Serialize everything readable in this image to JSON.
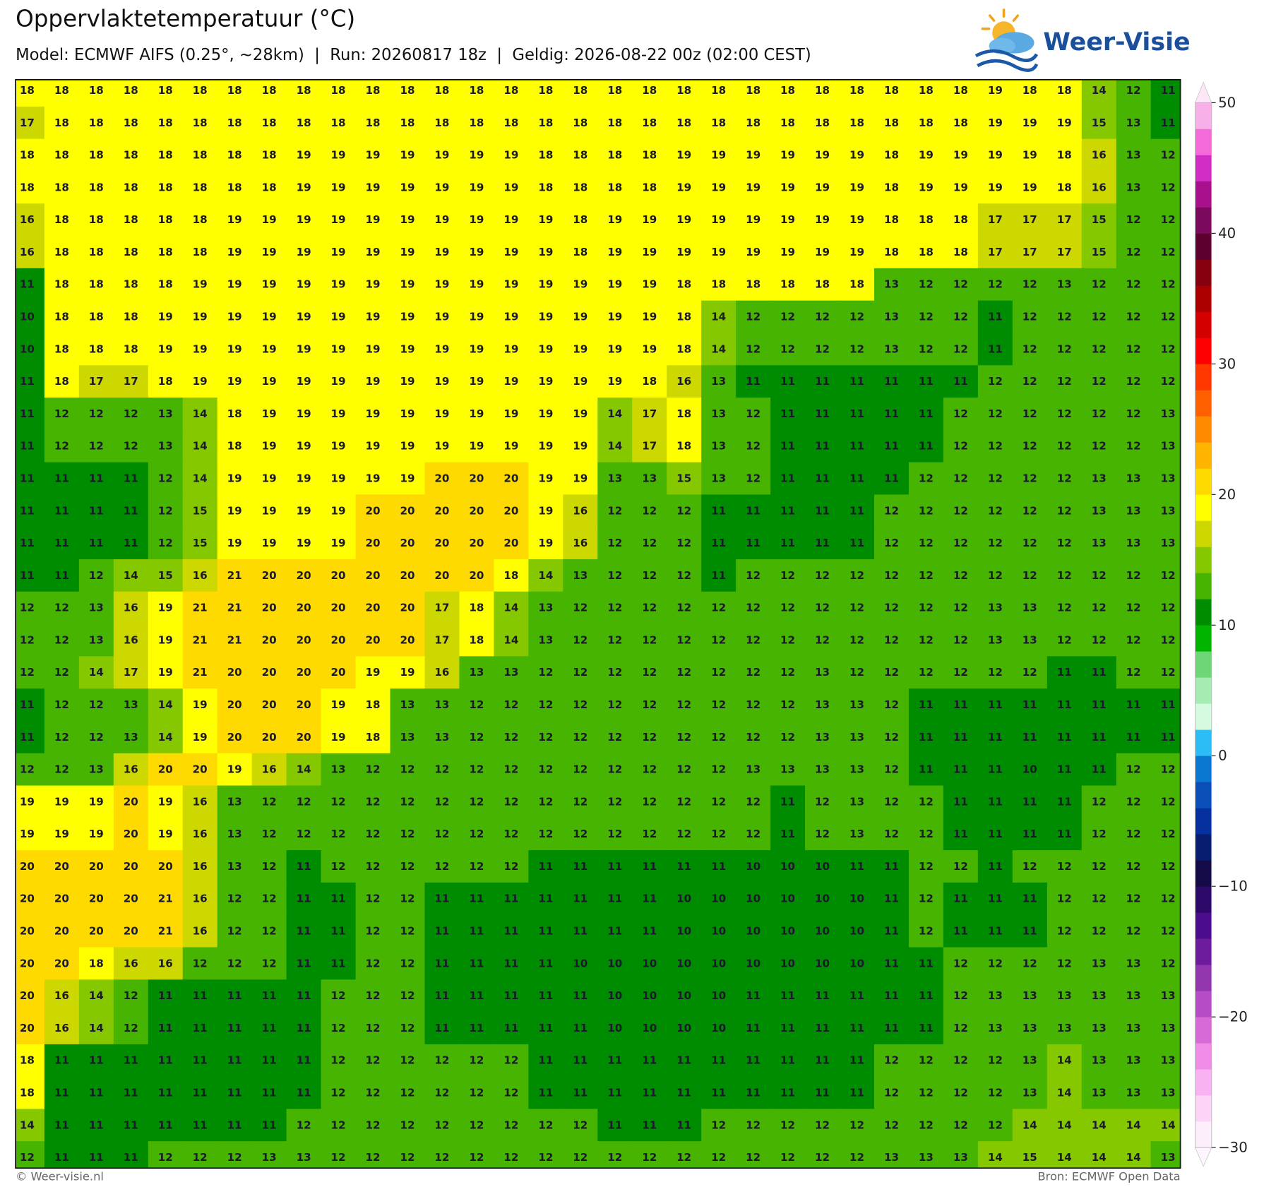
{
  "header": {
    "title": "Oppervlaktetemperatuur (°C)",
    "subtitle": "Model: ECMWF AIFS (0.25°, ~28km)  |  Run: 20260817 18z  |  Geldig: 2026-08-22 00z (02:00 CEST)",
    "logo_text": "Weer-Visie"
  },
  "map": {
    "values": [
      [
        18,
        18,
        18,
        18,
        18,
        18,
        18,
        18,
        18,
        18,
        18,
        18,
        18,
        18,
        18,
        18,
        18,
        18,
        18,
        18,
        18,
        18,
        18,
        18,
        18,
        18,
        18,
        18,
        19,
        18,
        18,
        14,
        12,
        11
      ],
      [
        17,
        18,
        18,
        18,
        18,
        18,
        18,
        18,
        18,
        18,
        18,
        18,
        18,
        18,
        18,
        18,
        18,
        18,
        18,
        18,
        18,
        18,
        18,
        18,
        18,
        18,
        18,
        18,
        19,
        19,
        19,
        15,
        13,
        11
      ],
      [
        18,
        18,
        18,
        18,
        18,
        18,
        18,
        18,
        19,
        19,
        19,
        19,
        19,
        19,
        19,
        18,
        18,
        18,
        18,
        19,
        19,
        19,
        19,
        19,
        19,
        18,
        19,
        19,
        19,
        19,
        18,
        16,
        13,
        12
      ],
      [
        18,
        18,
        18,
        18,
        18,
        18,
        18,
        18,
        19,
        19,
        19,
        19,
        19,
        19,
        19,
        18,
        18,
        18,
        18,
        19,
        19,
        19,
        19,
        19,
        19,
        18,
        19,
        19,
        19,
        19,
        18,
        16,
        13,
        12
      ],
      [
        16,
        18,
        18,
        18,
        18,
        18,
        19,
        19,
        19,
        19,
        19,
        19,
        19,
        19,
        19,
        19,
        18,
        19,
        19,
        19,
        19,
        19,
        19,
        19,
        19,
        18,
        18,
        18,
        17,
        17,
        17,
        15,
        12,
        12
      ],
      [
        16,
        18,
        18,
        18,
        18,
        18,
        19,
        19,
        19,
        19,
        19,
        19,
        19,
        19,
        19,
        19,
        18,
        19,
        19,
        19,
        19,
        19,
        19,
        19,
        19,
        18,
        18,
        18,
        17,
        17,
        17,
        15,
        12,
        12
      ],
      [
        11,
        18,
        18,
        18,
        18,
        19,
        19,
        19,
        19,
        19,
        19,
        19,
        19,
        19,
        19,
        19,
        19,
        19,
        19,
        18,
        18,
        18,
        18,
        18,
        18,
        13,
        12,
        12,
        12,
        12,
        13,
        12,
        12,
        12
      ],
      [
        10,
        18,
        18,
        18,
        19,
        19,
        19,
        19,
        19,
        19,
        19,
        19,
        19,
        19,
        19,
        19,
        19,
        19,
        19,
        18,
        14,
        12,
        12,
        12,
        12,
        13,
        12,
        12,
        11,
        12,
        12,
        12,
        12,
        12
      ],
      [
        10,
        18,
        18,
        18,
        19,
        19,
        19,
        19,
        19,
        19,
        19,
        19,
        19,
        19,
        19,
        19,
        19,
        19,
        19,
        18,
        14,
        12,
        12,
        12,
        12,
        13,
        12,
        12,
        11,
        12,
        12,
        12,
        12,
        12
      ],
      [
        11,
        18,
        17,
        17,
        18,
        19,
        19,
        19,
        19,
        19,
        19,
        19,
        19,
        19,
        19,
        19,
        19,
        19,
        18,
        16,
        13,
        11,
        11,
        11,
        11,
        11,
        11,
        11,
        12,
        12,
        12,
        12,
        12,
        12
      ],
      [
        11,
        12,
        12,
        12,
        13,
        14,
        18,
        19,
        19,
        19,
        19,
        19,
        19,
        19,
        19,
        19,
        19,
        14,
        17,
        18,
        13,
        12,
        11,
        11,
        11,
        11,
        11,
        12,
        12,
        12,
        12,
        12,
        12,
        13
      ],
      [
        11,
        12,
        12,
        12,
        13,
        14,
        18,
        19,
        19,
        19,
        19,
        19,
        19,
        19,
        19,
        19,
        19,
        14,
        17,
        18,
        13,
        12,
        11,
        11,
        11,
        11,
        11,
        12,
        12,
        12,
        12,
        12,
        12,
        13
      ],
      [
        11,
        11,
        11,
        11,
        12,
        14,
        19,
        19,
        19,
        19,
        19,
        19,
        20,
        20,
        20,
        19,
        19,
        13,
        13,
        15,
        13,
        12,
        11,
        11,
        11,
        11,
        12,
        12,
        12,
        12,
        12,
        13,
        13,
        13
      ],
      [
        11,
        11,
        11,
        11,
        12,
        15,
        19,
        19,
        19,
        19,
        20,
        20,
        20,
        20,
        20,
        19,
        16,
        12,
        12,
        12,
        11,
        11,
        11,
        11,
        11,
        12,
        12,
        12,
        12,
        12,
        12,
        13,
        13,
        13
      ],
      [
        11,
        11,
        11,
        11,
        12,
        15,
        19,
        19,
        19,
        19,
        20,
        20,
        20,
        20,
        20,
        19,
        16,
        12,
        12,
        12,
        11,
        11,
        11,
        11,
        11,
        12,
        12,
        12,
        12,
        12,
        12,
        13,
        13,
        13
      ],
      [
        11,
        11,
        12,
        14,
        15,
        16,
        21,
        20,
        20,
        20,
        20,
        20,
        20,
        20,
        18,
        14,
        13,
        12,
        12,
        12,
        11,
        12,
        12,
        12,
        12,
        12,
        12,
        12,
        12,
        12,
        12,
        12,
        12,
        12
      ],
      [
        12,
        12,
        13,
        16,
        19,
        21,
        21,
        20,
        20,
        20,
        20,
        20,
        17,
        18,
        14,
        13,
        12,
        12,
        12,
        12,
        12,
        12,
        12,
        12,
        12,
        12,
        12,
        12,
        13,
        13,
        12,
        12,
        12,
        12
      ],
      [
        12,
        12,
        13,
        16,
        19,
        21,
        21,
        20,
        20,
        20,
        20,
        20,
        17,
        18,
        14,
        13,
        12,
        12,
        12,
        12,
        12,
        12,
        12,
        12,
        12,
        12,
        12,
        12,
        13,
        13,
        12,
        12,
        12,
        12
      ],
      [
        12,
        12,
        14,
        17,
        19,
        21,
        20,
        20,
        20,
        20,
        19,
        19,
        16,
        13,
        13,
        12,
        12,
        12,
        12,
        12,
        12,
        12,
        12,
        13,
        12,
        12,
        12,
        12,
        12,
        12,
        11,
        11,
        12,
        12
      ],
      [
        11,
        12,
        12,
        13,
        14,
        19,
        20,
        20,
        20,
        19,
        18,
        13,
        13,
        12,
        12,
        12,
        12,
        12,
        12,
        12,
        12,
        12,
        12,
        13,
        13,
        12,
        11,
        11,
        11,
        11,
        11,
        11,
        11,
        11
      ],
      [
        11,
        12,
        12,
        13,
        14,
        19,
        20,
        20,
        20,
        19,
        18,
        13,
        13,
        12,
        12,
        12,
        12,
        12,
        12,
        12,
        12,
        12,
        12,
        13,
        13,
        12,
        11,
        11,
        11,
        11,
        11,
        11,
        11,
        11
      ],
      [
        12,
        12,
        13,
        16,
        20,
        20,
        19,
        16,
        14,
        13,
        12,
        12,
        12,
        12,
        12,
        12,
        12,
        12,
        12,
        12,
        12,
        13,
        13,
        13,
        13,
        12,
        11,
        11,
        11,
        10,
        11,
        11,
        12,
        12
      ],
      [
        19,
        19,
        19,
        20,
        19,
        16,
        13,
        12,
        12,
        12,
        12,
        12,
        12,
        12,
        12,
        12,
        12,
        12,
        12,
        12,
        12,
        12,
        11,
        12,
        13,
        12,
        12,
        11,
        11,
        11,
        11,
        12,
        12,
        12
      ],
      [
        19,
        19,
        19,
        20,
        19,
        16,
        13,
        12,
        12,
        12,
        12,
        12,
        12,
        12,
        12,
        12,
        12,
        12,
        12,
        12,
        12,
        12,
        11,
        12,
        13,
        12,
        12,
        11,
        11,
        11,
        11,
        12,
        12,
        12
      ],
      [
        20,
        20,
        20,
        20,
        20,
        16,
        13,
        12,
        11,
        12,
        12,
        12,
        12,
        12,
        12,
        11,
        11,
        11,
        11,
        11,
        11,
        10,
        10,
        10,
        11,
        11,
        12,
        12,
        11,
        12,
        12,
        12,
        12,
        12
      ],
      [
        20,
        20,
        20,
        20,
        21,
        16,
        12,
        12,
        11,
        11,
        12,
        12,
        11,
        11,
        11,
        11,
        11,
        11,
        11,
        10,
        10,
        10,
        10,
        10,
        10,
        11,
        12,
        11,
        11,
        11,
        12,
        12,
        12,
        12
      ],
      [
        20,
        20,
        20,
        20,
        21,
        16,
        12,
        12,
        11,
        11,
        12,
        12,
        11,
        11,
        11,
        11,
        11,
        11,
        11,
        10,
        10,
        10,
        10,
        10,
        10,
        11,
        12,
        11,
        11,
        11,
        12,
        12,
        12,
        12
      ],
      [
        20,
        20,
        18,
        16,
        16,
        12,
        12,
        12,
        11,
        11,
        12,
        12,
        11,
        11,
        11,
        11,
        10,
        10,
        10,
        10,
        10,
        10,
        10,
        10,
        10,
        11,
        11,
        12,
        12,
        12,
        12,
        13,
        13,
        12
      ],
      [
        20,
        16,
        14,
        12,
        11,
        11,
        11,
        11,
        11,
        12,
        12,
        12,
        11,
        11,
        11,
        11,
        11,
        10,
        10,
        10,
        10,
        11,
        11,
        11,
        11,
        11,
        11,
        12,
        13,
        13,
        13,
        13,
        13,
        13
      ],
      [
        20,
        16,
        14,
        12,
        11,
        11,
        11,
        11,
        11,
        12,
        12,
        12,
        11,
        11,
        11,
        11,
        11,
        10,
        10,
        10,
        10,
        11,
        11,
        11,
        11,
        11,
        11,
        12,
        13,
        13,
        13,
        13,
        13,
        13
      ],
      [
        18,
        11,
        11,
        11,
        11,
        11,
        11,
        11,
        11,
        12,
        12,
        12,
        12,
        12,
        12,
        11,
        11,
        11,
        11,
        11,
        11,
        11,
        11,
        11,
        11,
        12,
        12,
        12,
        12,
        13,
        14,
        13,
        13,
        13
      ],
      [
        18,
        11,
        11,
        11,
        11,
        11,
        11,
        11,
        11,
        12,
        12,
        12,
        12,
        12,
        12,
        11,
        11,
        11,
        11,
        11,
        11,
        11,
        11,
        11,
        11,
        12,
        12,
        12,
        12,
        13,
        14,
        13,
        13,
        13
      ],
      [
        14,
        11,
        11,
        11,
        11,
        11,
        11,
        11,
        12,
        12,
        12,
        12,
        12,
        12,
        12,
        12,
        12,
        11,
        11,
        11,
        12,
        12,
        12,
        12,
        12,
        12,
        12,
        12,
        12,
        14,
        14,
        14,
        14,
        14
      ],
      [
        12,
        11,
        11,
        11,
        12,
        12,
        12,
        13,
        13,
        12,
        12,
        12,
        12,
        12,
        12,
        12,
        12,
        12,
        12,
        12,
        12,
        12,
        12,
        12,
        12,
        13,
        13,
        13,
        14,
        15,
        14,
        14,
        14,
        13
      ]
    ],
    "colorbar": {
      "lim": [
        -30,
        50
      ],
      "ticks": [
        {
          "value": -30,
          "label": "−30"
        },
        {
          "value": -20,
          "label": "−20"
        },
        {
          "value": -10,
          "label": "−10"
        },
        0,
        10,
        20,
        30,
        40,
        50
      ],
      "colors": [
        "#fdeefc",
        "#fcd4f8",
        "#f9b2f1",
        "#ee8ce8",
        "#d86ad8",
        "#b54ec4",
        "#9236ae",
        "#6c1c9c",
        "#4b0c8e",
        "#2c0868",
        "#140a48",
        "#061d70",
        "#05309e",
        "#0a4fb8",
        "#0a78d0",
        "#2cbcf6",
        "#d6fadf",
        "#a6ecb2",
        "#6ed676",
        "#00b400",
        "#008c00",
        "#46b400",
        "#86c800",
        "#ccd800",
        "#ffff00",
        "#ffda00",
        "#ffb400",
        "#ff8a00",
        "#ff6000",
        "#ff3800",
        "#ff0000",
        "#d40000",
        "#ac0000",
        "#860010",
        "#5c0030",
        "#7c0a5c",
        "#a8108c",
        "#d22ec4",
        "#f46ad8",
        "#f8b0e8"
      ],
      "under_color": "#fef6fe",
      "over_color": "#fde6f8"
    }
  },
  "footer": {
    "left": "© Weer-visie.nl",
    "right": "Bron: ECMWF Open Data"
  }
}
